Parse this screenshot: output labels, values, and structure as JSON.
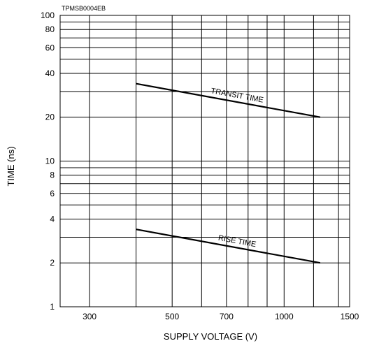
{
  "chart_data": {
    "type": "line",
    "document_code": "TPMSB0004EB",
    "xlabel": "SUPPLY VOLTAGE (V)",
    "ylabel": "TIME (ns)",
    "x_scale": "log",
    "y_scale": "log",
    "xlim": [
      250,
      1500
    ],
    "ylim": [
      1,
      100
    ],
    "grid": true,
    "x_ticks": [
      300,
      500,
      700,
      1000,
      1500
    ],
    "y_ticks": [
      1,
      2,
      4,
      6,
      8,
      10,
      20,
      40,
      60,
      80,
      100
    ],
    "x_grid": [
      300,
      400,
      500,
      600,
      700,
      800,
      900,
      1000,
      1200,
      1400,
      1500
    ],
    "y_grid": [
      1,
      2,
      3,
      4,
      5,
      6,
      7,
      8,
      9,
      10,
      20,
      30,
      40,
      50,
      60,
      70,
      80,
      90,
      100
    ],
    "series": [
      {
        "name": "TRANSIT TIME",
        "x": [
          400,
          1250
        ],
        "y": [
          34,
          20
        ]
      },
      {
        "name": "RISE TIME",
        "x": [
          400,
          1250
        ],
        "y": [
          3.4,
          2.0
        ]
      }
    ]
  }
}
